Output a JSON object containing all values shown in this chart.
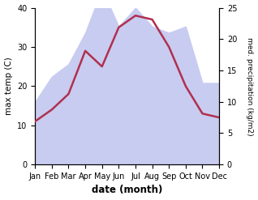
{
  "months": [
    "Jan",
    "Feb",
    "Mar",
    "Apr",
    "May",
    "Jun",
    "Jul",
    "Aug",
    "Sep",
    "Oct",
    "Nov",
    "Dec"
  ],
  "temp": [
    11,
    14,
    18,
    29,
    25,
    35,
    38,
    37,
    30,
    20,
    13,
    12
  ],
  "precip": [
    10,
    14,
    16,
    21,
    28,
    22,
    25,
    22,
    21,
    22,
    13,
    13
  ],
  "temp_color": "#b03050",
  "precip_fill_color": "#c8ccf0",
  "xlabel": "date (month)",
  "ylabel_left": "max temp (C)",
  "ylabel_right": "med. precipitation (kg/m2)",
  "ylim_left": [
    0,
    40
  ],
  "ylim_right": [
    0,
    25
  ],
  "yticks_left": [
    0,
    10,
    20,
    30,
    40
  ],
  "yticks_right": [
    0,
    5,
    10,
    15,
    20,
    25
  ],
  "bg_color": "#ffffff",
  "line_width": 1.8
}
